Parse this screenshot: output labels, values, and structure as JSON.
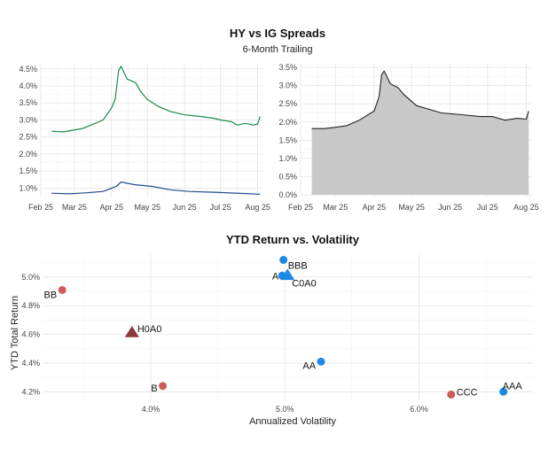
{
  "chart_data": [
    {
      "type": "line",
      "panel": "left",
      "title": "HY vs IG Spreads",
      "subtitle": "6-Month Trailing",
      "x_ticks": [
        "Feb 25",
        "Mar 25",
        "Apr 25",
        "May 25",
        "Jun 25",
        "Jul 25",
        "Aug 25"
      ],
      "y_ticks": [
        "1.0%",
        "1.5%",
        "2.0%",
        "2.5%",
        "3.0%",
        "3.5%",
        "4.0%",
        "4.5%"
      ],
      "xlim": [
        "2025-02-01",
        "2025-08-05"
      ],
      "ylim": [
        0.75,
        4.65
      ],
      "grid": true,
      "series": [
        {
          "color": "#1a8a4a",
          "points": [
            [
              "2025-02-10",
              2.67
            ],
            [
              "2025-02-20",
              2.65
            ],
            [
              "2025-02-28",
              2.7
            ],
            [
              "2025-03-08",
              2.75
            ],
            [
              "2025-03-15",
              2.85
            ],
            [
              "2025-03-25",
              3.0
            ],
            [
              "2025-04-01",
              3.35
            ],
            [
              "2025-04-04",
              3.6
            ],
            [
              "2025-04-07",
              4.45
            ],
            [
              "2025-04-09",
              4.58
            ],
            [
              "2025-04-14",
              4.2
            ],
            [
              "2025-04-21",
              4.1
            ],
            [
              "2025-04-25",
              3.85
            ],
            [
              "2025-05-01",
              3.6
            ],
            [
              "2025-05-10",
              3.4
            ],
            [
              "2025-05-20",
              3.25
            ],
            [
              "2025-06-01",
              3.15
            ],
            [
              "2025-06-15",
              3.1
            ],
            [
              "2025-06-25",
              3.05
            ],
            [
              "2025-07-01",
              3.0
            ],
            [
              "2025-07-10",
              2.95
            ],
            [
              "2025-07-15",
              2.85
            ],
            [
              "2025-07-22",
              2.9
            ],
            [
              "2025-07-28",
              2.85
            ],
            [
              "2025-08-01",
              2.88
            ],
            [
              "2025-08-03",
              3.1
            ]
          ]
        },
        {
          "color": "#1f4e8c",
          "points": [
            [
              "2025-02-10",
              0.85
            ],
            [
              "2025-02-25",
              0.83
            ],
            [
              "2025-03-10",
              0.86
            ],
            [
              "2025-03-25",
              0.9
            ],
            [
              "2025-04-05",
              1.05
            ],
            [
              "2025-04-09",
              1.18
            ],
            [
              "2025-04-20",
              1.1
            ],
            [
              "2025-05-05",
              1.05
            ],
            [
              "2025-05-20",
              0.95
            ],
            [
              "2025-06-05",
              0.9
            ],
            [
              "2025-07-01",
              0.87
            ],
            [
              "2025-07-20",
              0.84
            ],
            [
              "2025-08-03",
              0.82
            ]
          ]
        }
      ]
    },
    {
      "type": "area",
      "panel": "right",
      "x_ticks": [
        "Feb 25",
        "Mar 25",
        "Apr 25",
        "May 25",
        "Jun 25",
        "Jul 25",
        "Aug 25"
      ],
      "y_ticks": [
        "0.0%",
        "0.5%",
        "1.0%",
        "1.5%",
        "2.0%",
        "2.5%",
        "3.0%",
        "3.5%"
      ],
      "xlim": [
        "2025-02-01",
        "2025-08-05"
      ],
      "ylim": [
        -0.05,
        3.6
      ],
      "grid": true,
      "color": "#222222",
      "fill": "#c8c8c8",
      "points": [
        [
          "2025-02-10",
          1.82
        ],
        [
          "2025-02-20",
          1.82
        ],
        [
          "2025-02-28",
          1.85
        ],
        [
          "2025-03-10",
          1.9
        ],
        [
          "2025-03-20",
          2.05
        ],
        [
          "2025-04-01",
          2.3
        ],
        [
          "2025-04-05",
          2.7
        ],
        [
          "2025-04-07",
          3.3
        ],
        [
          "2025-04-09",
          3.4
        ],
        [
          "2025-04-14",
          3.05
        ],
        [
          "2025-04-20",
          2.95
        ],
        [
          "2025-04-25",
          2.75
        ],
        [
          "2025-05-05",
          2.45
        ],
        [
          "2025-05-15",
          2.35
        ],
        [
          "2025-05-25",
          2.25
        ],
        [
          "2025-06-10",
          2.2
        ],
        [
          "2025-06-25",
          2.15
        ],
        [
          "2025-07-05",
          2.15
        ],
        [
          "2025-07-15",
          2.05
        ],
        [
          "2025-07-25",
          2.1
        ],
        [
          "2025-08-01",
          2.08
        ],
        [
          "2025-08-03",
          2.3
        ]
      ]
    },
    {
      "type": "scatter",
      "title": "YTD Return vs. Volatility",
      "xlabel": "Annualized Volatility",
      "ylabel": "YTD Total Return",
      "x_ticks": [
        "4.0%",
        "5.0%",
        "6.0%"
      ],
      "y_ticks": [
        "4.2%",
        "4.4%",
        "4.6%",
        "4.8%",
        "5.0%"
      ],
      "xlim": [
        3.2,
        6.85
      ],
      "ylim": [
        4.14,
        5.16
      ],
      "grid": true,
      "points": [
        {
          "label": "BBB",
          "x": 4.99,
          "y": 5.12,
          "color": "#1e88e5",
          "shape": "circle"
        },
        {
          "label": "A",
          "x": 4.98,
          "y": 5.01,
          "color": "#1e88e5",
          "shape": "circle"
        },
        {
          "label": "C0A0",
          "x": 5.02,
          "y": 5.01,
          "color": "#1e88e5",
          "shape": "triangle"
        },
        {
          "label": "AA",
          "x": 5.27,
          "y": 4.41,
          "color": "#1e88e5",
          "shape": "circle"
        },
        {
          "label": "AAA",
          "x": 6.63,
          "y": 4.2,
          "color": "#1e88e5",
          "shape": "circle"
        },
        {
          "label": "BB",
          "x": 3.34,
          "y": 4.91,
          "color": "#cd5c5c",
          "shape": "circle"
        },
        {
          "label": "H0A0",
          "x": 3.86,
          "y": 4.61,
          "color": "#8b3a3a",
          "shape": "triangle"
        },
        {
          "label": "B",
          "x": 4.09,
          "y": 4.24,
          "color": "#cd5c5c",
          "shape": "circle"
        },
        {
          "label": "CCC",
          "x": 6.24,
          "y": 4.18,
          "color": "#cd5c5c",
          "shape": "circle"
        }
      ]
    }
  ]
}
